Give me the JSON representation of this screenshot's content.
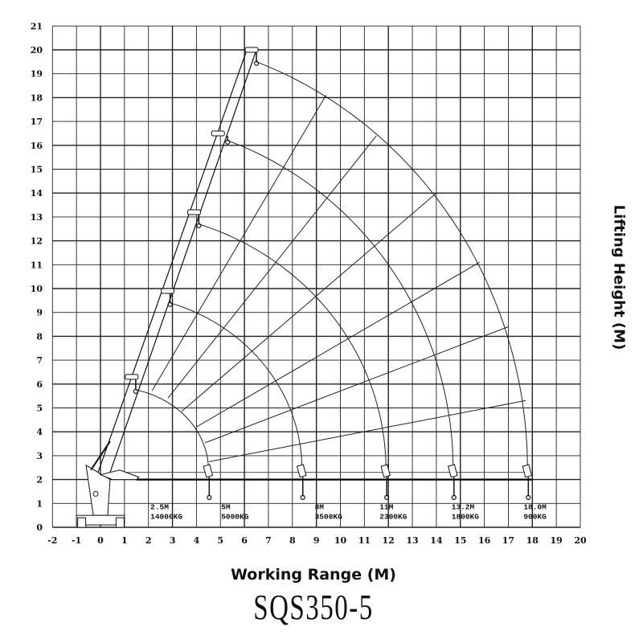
{
  "chart_data": {
    "type": "line",
    "title": "",
    "xlabel": "Working Range (M)",
    "ylabel": "Lifting Height (M)",
    "model": "SQS350-5",
    "xlim": [
      -2,
      20
    ],
    "ylim": [
      0,
      21
    ],
    "grid": true,
    "x_ticks": [
      "-2",
      "-1",
      "0",
      "1",
      "2",
      "3",
      "4",
      "5",
      "6",
      "7",
      "8",
      "9",
      "10",
      "11",
      "12",
      "13",
      "14",
      "15",
      "16",
      "17",
      "18",
      "19",
      "20"
    ],
    "y_ticks": [
      "0",
      "1",
      "2",
      "3",
      "4",
      "5",
      "6",
      "7",
      "8",
      "9",
      "10",
      "11",
      "12",
      "13",
      "14",
      "15",
      "16",
      "17",
      "18",
      "19",
      "20",
      "21"
    ],
    "boom_sections": [
      {
        "tip": [
          1.3,
          6.3
        ],
        "hook": [
          1.47,
          5.76
        ]
      },
      {
        "tip": [
          2.8,
          9.9
        ],
        "hook": [
          2.9,
          9.4
        ]
      },
      {
        "tip": [
          3.9,
          13.2
        ],
        "hook": [
          4.1,
          12.7
        ]
      },
      {
        "tip": [
          4.9,
          16.5
        ],
        "hook": [
          5.3,
          16.2
        ]
      },
      {
        "tip": [
          6.3,
          20.0
        ],
        "hook": [
          6.5,
          19.5
        ]
      }
    ],
    "boom_base": [
      0.1,
      2.3
    ],
    "arcs": [
      {
        "start": [
          1.47,
          5.76
        ],
        "end": [
          4.5,
          2.4
        ]
      },
      {
        "start": [
          2.9,
          9.4
        ],
        "end": [
          8.4,
          2.4
        ]
      },
      {
        "start": [
          4.1,
          12.7
        ],
        "end": [
          11.9,
          2.4
        ]
      },
      {
        "start": [
          5.3,
          16.2
        ],
        "end": [
          14.7,
          2.4
        ]
      },
      {
        "start": [
          6.5,
          19.5
        ],
        "end": [
          17.8,
          2.4
        ]
      }
    ],
    "radial_lines": [
      {
        "from": [
          2.15,
          5.72
        ],
        "to": [
          9.4,
          18.1
        ]
      },
      {
        "from": [
          2.82,
          5.42
        ],
        "to": [
          11.5,
          16.4
        ]
      },
      {
        "from": [
          3.39,
          4.86
        ],
        "to": [
          14.0,
          14.0
        ]
      },
      {
        "from": [
          4.01,
          4.21
        ],
        "to": [
          15.8,
          11.1
        ]
      },
      {
        "from": [
          4.36,
          3.54
        ],
        "to": [
          17.0,
          8.4
        ]
      },
      {
        "from": [
          4.52,
          2.75
        ],
        "to": [
          17.73,
          5.31
        ]
      }
    ],
    "load_points": [
      {
        "radius": "2.5M",
        "load": "14000KG"
      },
      {
        "radius": "5M",
        "load": "5000KG"
      },
      {
        "radius": "8M",
        "load": "3500KG"
      },
      {
        "radius": "11M",
        "load": "2300KG"
      },
      {
        "radius": "13.2M",
        "load": "1800KG"
      },
      {
        "radius": "18.0M",
        "load": "900KG"
      }
    ]
  }
}
